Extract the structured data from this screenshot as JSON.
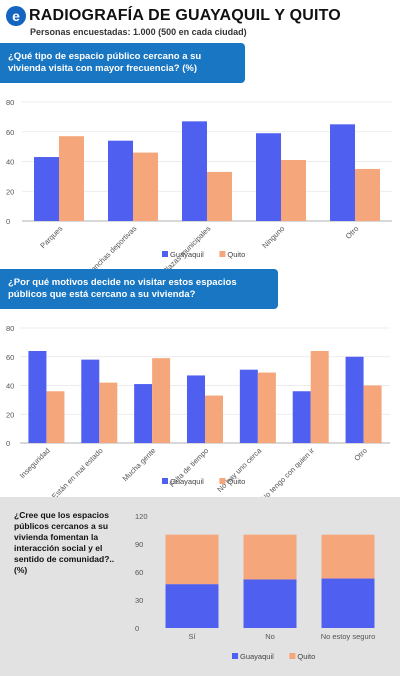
{
  "header": {
    "logo_letter": "e",
    "title": "RADIOGRAFÍA DE GUAYAQUIL Y QUITO",
    "subtitle": "Personas encuestadas: 1.000 (500 en cada ciudad)"
  },
  "colors": {
    "guayaquil": "#4f60f0",
    "quito": "#f5a67a",
    "question_box": "#1976c2"
  },
  "chart_data": [
    {
      "type": "bar",
      "title": "¿Qué tipo de espacio público cercano a su vivienda visita con mayor frecuencia? (%)",
      "categories": [
        "Parques",
        "Canchas deportivas",
        "Plazas municipales",
        "Ninguno",
        "Otro"
      ],
      "series": [
        {
          "name": "Guayaquil",
          "values": [
            43,
            54,
            67,
            59,
            65
          ]
        },
        {
          "name": "Quito",
          "values": [
            57,
            46,
            33,
            41,
            35
          ]
        }
      ],
      "ylim": [
        0,
        80
      ],
      "yticks": [
        0,
        20,
        40,
        60,
        80
      ],
      "grid": true,
      "legend": "bottom"
    },
    {
      "type": "bar",
      "title": "¿Por qué motivos decide no visitar estos espacios públicos que está cercano a su vivienda?",
      "categories": [
        "Inseguridad",
        "Están en mal estado",
        "Mucha gente",
        "Falta de tiempo",
        "No hay uno cerca",
        "No tengo con quien ir",
        "Otro"
      ],
      "series": [
        {
          "name": "Guayaquil",
          "values": [
            64,
            58,
            41,
            47,
            51,
            36,
            60
          ]
        },
        {
          "name": "Quito",
          "values": [
            36,
            42,
            59,
            33,
            49,
            64,
            40
          ]
        }
      ],
      "ylim": [
        0,
        80
      ],
      "yticks": [
        0,
        20,
        40,
        60,
        80
      ],
      "grid": true,
      "legend": "bottom"
    },
    {
      "type": "bar",
      "stacked": true,
      "title": "¿Cree que los espacios públicos cercanos a su vivienda fomentan la interacción social y el sentido de comunidad?.. (%)",
      "categories": [
        "Sí",
        "No",
        "No estoy seguro"
      ],
      "series": [
        {
          "name": "Guayaquil",
          "values": [
            47,
            52,
            53
          ]
        },
        {
          "name": "Quito",
          "values": [
            53,
            48,
            47
          ]
        }
      ],
      "ylim": [
        0,
        120
      ],
      "yticks": [
        0,
        30,
        60,
        90,
        120
      ],
      "grid": false,
      "legend": "bottom"
    }
  ]
}
